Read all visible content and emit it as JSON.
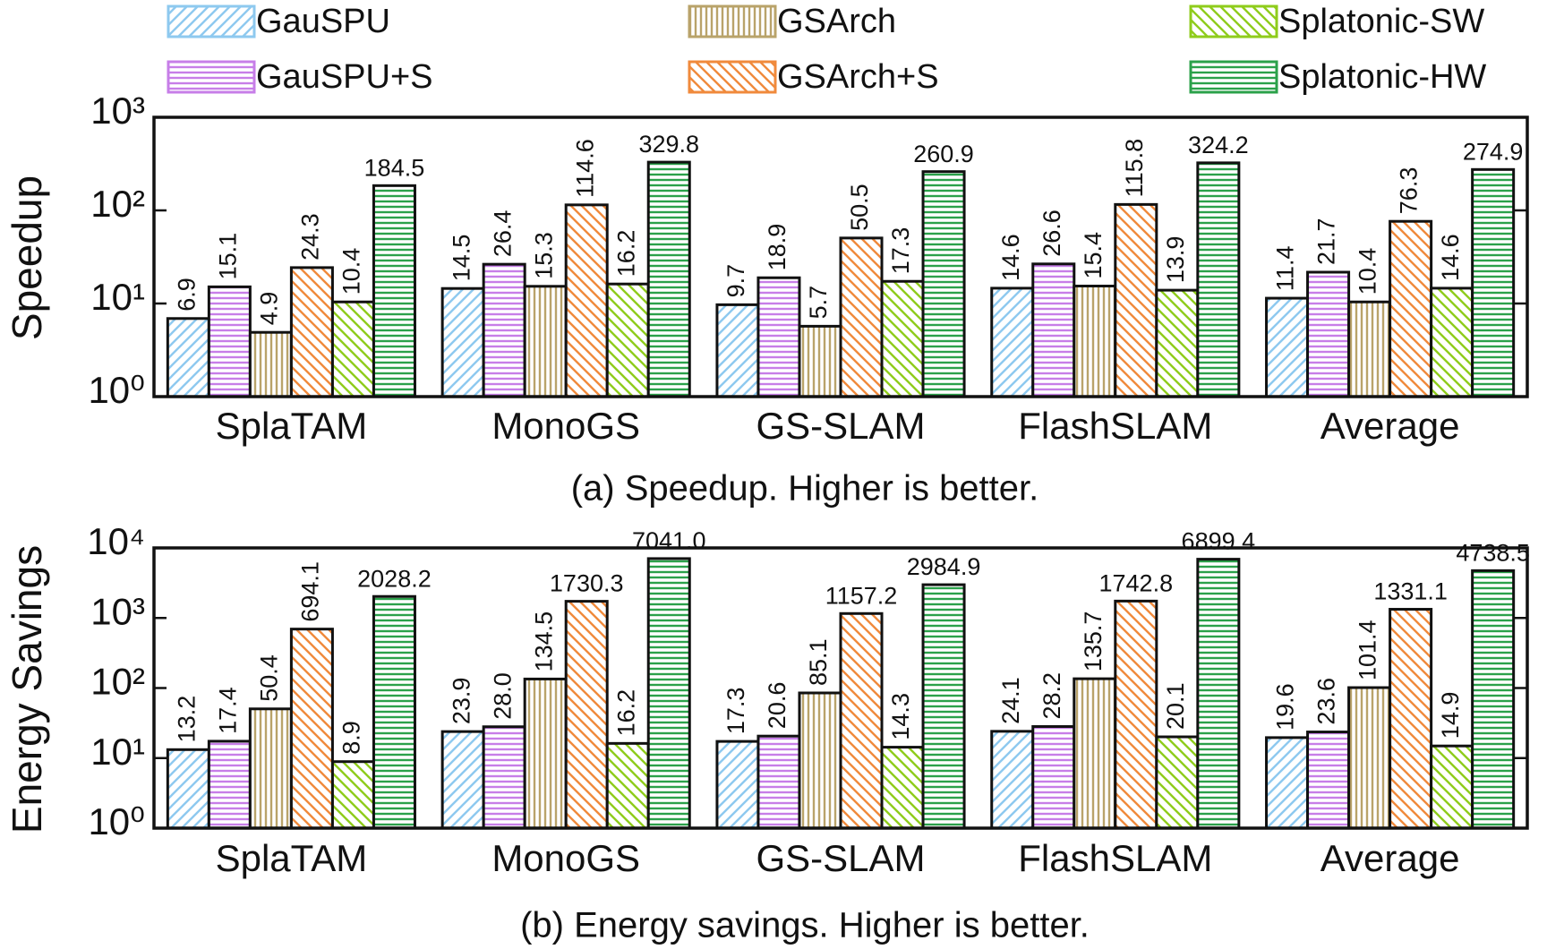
{
  "chart_data": [
    {
      "type": "bar",
      "title": "(a) Speedup. Higher is better.",
      "y_label": "Speedup",
      "log_scale": true,
      "categories": [
        "SplaTAM",
        "MonoGS",
        "GS-SLAM",
        "FlashSLAM",
        "Average"
      ],
      "ylim": [
        1,
        1000
      ],
      "yticks": [
        {
          "value": 1,
          "label": "10⁰"
        },
        {
          "value": 10,
          "label": "10¹"
        },
        {
          "value": 100,
          "label": "10²"
        },
        {
          "value": 1000,
          "label": "10³"
        }
      ],
      "series": [
        {
          "name": "GauSPU",
          "color": "#8ec9ef",
          "hatch": "diag-right",
          "values": [
            6.9,
            14.5,
            9.7,
            14.6,
            11.4
          ],
          "value_labels": [
            "6.9",
            "14.5",
            "9.7",
            "14.6",
            "11.4"
          ]
        },
        {
          "name": "GauSPU+S",
          "color": "#c77ee8",
          "hatch": "horizontal",
          "values": [
            15.1,
            26.4,
            18.9,
            26.6,
            21.7
          ],
          "value_labels": [
            "15.1",
            "26.4",
            "18.9",
            "26.6",
            "21.7"
          ]
        },
        {
          "name": "GSArch",
          "color": "#b9a36a",
          "hatch": "vertical",
          "values": [
            4.9,
            15.3,
            5.7,
            15.4,
            10.4
          ],
          "value_labels": [
            "4.9",
            "15.3",
            "5.7",
            "15.4",
            "10.4"
          ]
        },
        {
          "name": "GSArch+S",
          "color": "#f08a3c",
          "hatch": "diag-left",
          "values": [
            24.3,
            114.6,
            50.5,
            115.8,
            76.3
          ],
          "value_labels": [
            "24.3",
            "114.6",
            "50.5",
            "115.8",
            "76.3"
          ]
        },
        {
          "name": "Splatonic-SW",
          "color": "#8fcc1c",
          "hatch": "diag-left",
          "values": [
            10.4,
            16.2,
            17.3,
            13.9,
            14.6
          ],
          "value_labels": [
            "10.4",
            "16.2",
            "17.3",
            "13.9",
            "14.6"
          ]
        },
        {
          "name": "Splatonic-HW",
          "color": "#2ba14a",
          "hatch": "horizontal",
          "values": [
            184.5,
            329.8,
            260.9,
            324.2,
            274.9
          ],
          "value_labels": [
            "184.5",
            "329.8",
            "260.9",
            "324.2",
            "274.9"
          ]
        }
      ]
    },
    {
      "type": "bar",
      "title": "(b) Energy savings. Higher is better.",
      "y_label": "Energy Savings",
      "log_scale": true,
      "categories": [
        "SplaTAM",
        "MonoGS",
        "GS-SLAM",
        "FlashSLAM",
        "Average"
      ],
      "ylim": [
        1,
        10000
      ],
      "yticks": [
        {
          "value": 1,
          "label": "10⁰"
        },
        {
          "value": 10,
          "label": "10¹"
        },
        {
          "value": 100,
          "label": "10²"
        },
        {
          "value": 1000,
          "label": "10³"
        },
        {
          "value": 10000,
          "label": "10⁴"
        }
      ],
      "series": [
        {
          "color": "#8ec9ef",
          "hatch": "diag-right",
          "values": [
            13.2,
            23.9,
            17.3,
            24.1,
            19.6
          ],
          "value_labels": [
            "13.2",
            "23.9",
            "17.3",
            "24.1",
            "19.6"
          ]
        },
        {
          "color": "#c77ee8",
          "hatch": "horizontal",
          "values": [
            17.4,
            28,
            20.6,
            28.2,
            23.6
          ],
          "value_labels": [
            "17.4",
            "28.0",
            "20.6",
            "28.2",
            "23.6"
          ]
        },
        {
          "color": "#b9a36a",
          "hatch": "vertical",
          "values": [
            50.4,
            134.5,
            85.1,
            135.7,
            101.4
          ],
          "value_labels": [
            "50.4",
            "134.5",
            "85.1",
            "135.7",
            "101.4"
          ]
        },
        {
          "color": "#f08a3c",
          "hatch": "diag-left",
          "values": [
            694.1,
            1730.3,
            1157.2,
            1742.8,
            1331.1
          ],
          "value_labels": [
            "694.1",
            "1730.3",
            "1157.2",
            "1742.8",
            "1331.1"
          ]
        },
        {
          "color": "#8fcc1c",
          "hatch": "diag-left",
          "values": [
            8.9,
            16.2,
            14.3,
            20.1,
            14.9
          ],
          "value_labels": [
            "8.9",
            "16.2",
            "14.3",
            "20.1",
            "14.9"
          ]
        },
        {
          "color": "#2ba14a",
          "hatch": "horizontal",
          "values": [
            2028.2,
            7041,
            2984.9,
            6899.4,
            4738.5
          ],
          "value_labels": [
            "2028.2",
            "7041.0",
            "2984.9",
            "6899.4",
            "4738.5"
          ]
        }
      ]
    }
  ]
}
